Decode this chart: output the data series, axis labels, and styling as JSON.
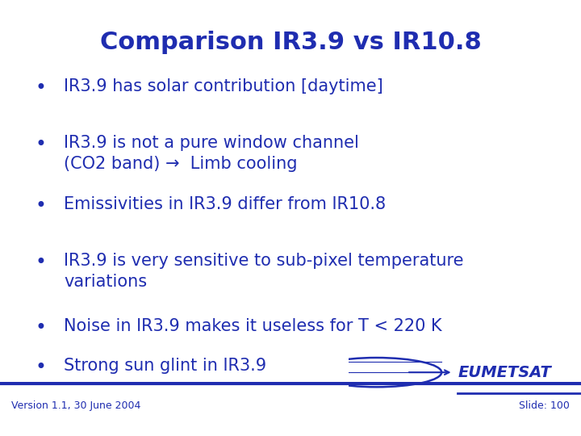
{
  "title": "Comparison IR3.9 vs IR10.8",
  "title_color": "#1f2db0",
  "title_fontsize": 22,
  "title_bold": true,
  "bullet_color": "#1f2db0",
  "bullet_fontsize": 15,
  "bullets": [
    "IR3.9 has solar contribution [daytime]",
    "IR3.9 is not a pure window channel\n(CO2 band) →  Limb cooling",
    "Emissivities in IR3.9 differ from IR10.8",
    "IR3.9 is very sensitive to sub-pixel temperature\nvariations",
    "Noise in IR3.9 makes it useless for T < 220 K",
    "Strong sun glint in IR3.9"
  ],
  "footer_left": "Version 1.1, 30 June 2004",
  "footer_right": "Slide: 100",
  "footer_fontsize": 9,
  "background_color": "#ffffff",
  "line_color": "#1f2db0",
  "eumetsat_text": "EUMETSAT"
}
